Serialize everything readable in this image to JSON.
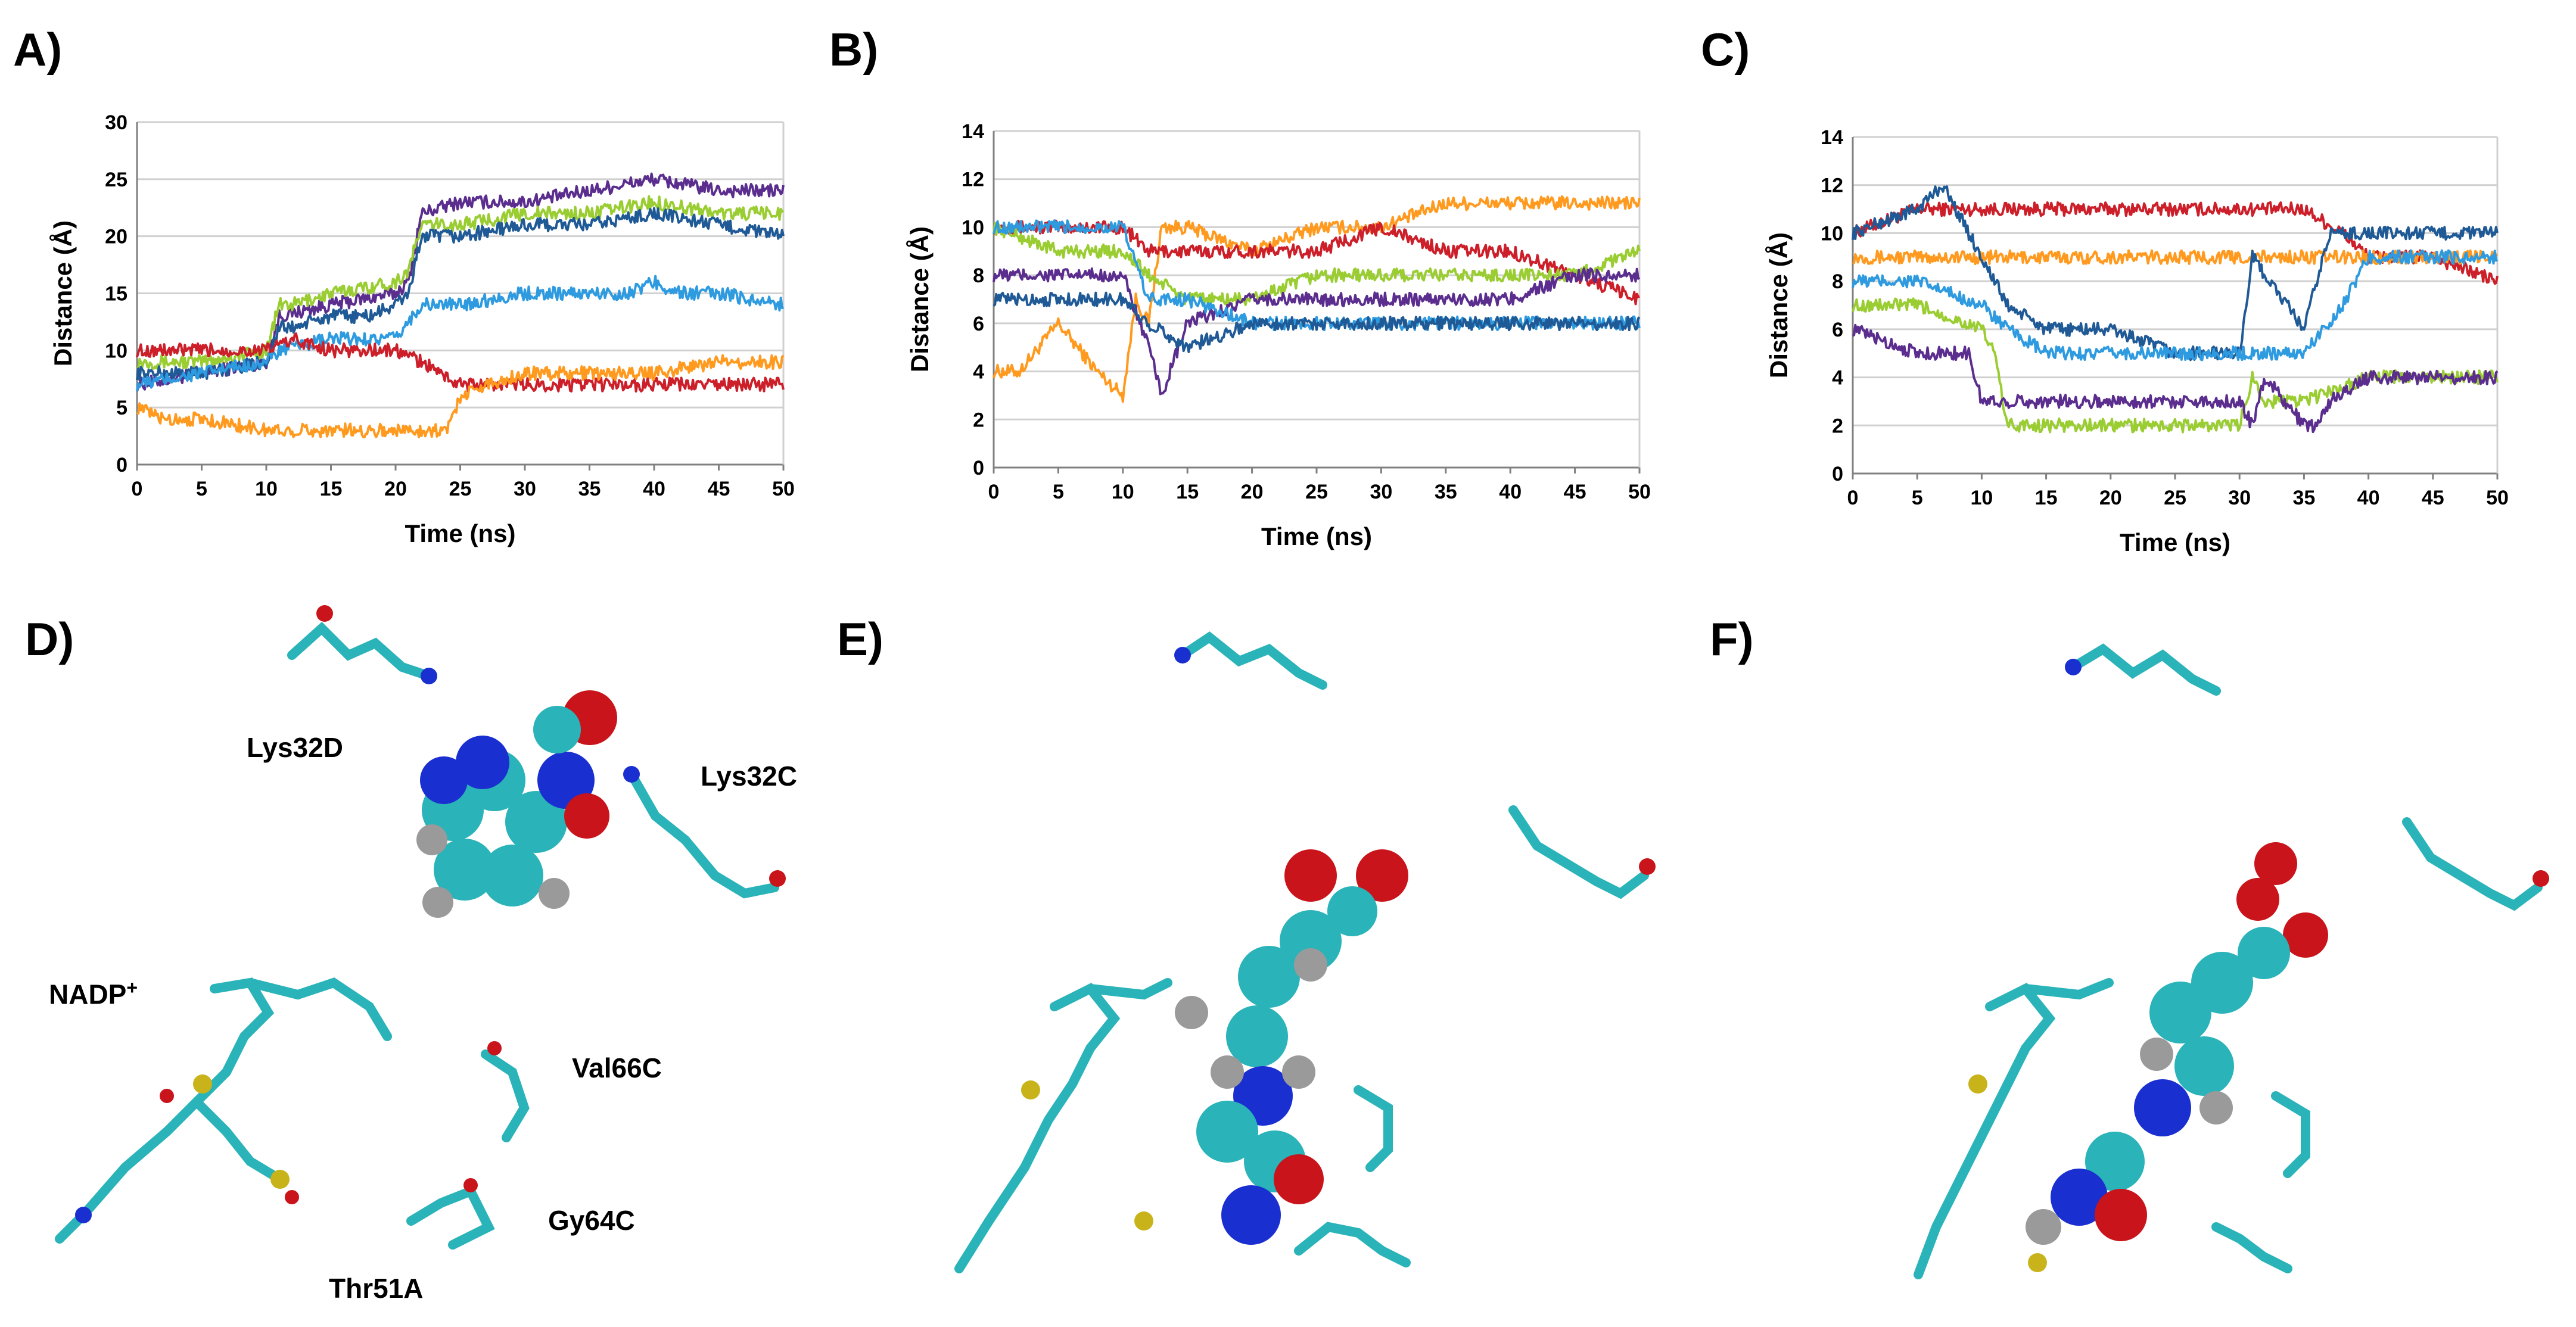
{
  "panels": [
    "A)",
    "B)",
    "C)",
    "D)",
    "E)",
    "F)"
  ],
  "colors": {
    "purple": "#5b2d8e",
    "lime": "#9acd32",
    "navy": "#1f5a96",
    "sky": "#2e9be0",
    "red": "#cc1f2a",
    "orange": "#ff9a1f",
    "carbon": "#2ab3b8",
    "nitrogen": "#1a2fd0",
    "oxygen": "#c8141a",
    "hydrogen": "#9a9a9a",
    "phosphorus": "#c8b41a"
  },
  "chart_data": [
    {
      "id": "A",
      "type": "line",
      "xlabel": "Time (ns)",
      "ylabel": "Distance (Å)",
      "xlim": [
        0,
        50
      ],
      "ylim": [
        0,
        30
      ],
      "xticks": [
        0,
        5,
        10,
        15,
        20,
        25,
        30,
        35,
        40,
        45,
        50
      ],
      "yticks": [
        0,
        5,
        10,
        15,
        20,
        25,
        30
      ],
      "grid": true,
      "series": [
        {
          "name": "purple",
          "color": "#5b2d8e",
          "x": [
            0,
            5,
            10,
            11,
            15,
            20,
            21,
            22,
            25,
            30,
            35,
            40,
            45,
            50
          ],
          "y": [
            7,
            8,
            9,
            13,
            14,
            15,
            16,
            22,
            23,
            23,
            24,
            25,
            24,
            24
          ]
        },
        {
          "name": "lime",
          "color": "#9acd32",
          "x": [
            0,
            5,
            10,
            11,
            12,
            15,
            20,
            21,
            22,
            25,
            30,
            35,
            40,
            45,
            50
          ],
          "y": [
            9,
            9,
            10,
            14,
            14,
            15,
            16,
            17,
            21,
            21,
            22,
            22,
            23,
            22,
            22
          ]
        },
        {
          "name": "navy",
          "color": "#1f5a96",
          "x": [
            0,
            5,
            10,
            11,
            12,
            15,
            18,
            20,
            21,
            22,
            25,
            30,
            35,
            40,
            45,
            50
          ],
          "y": [
            8,
            8,
            9,
            12,
            12,
            13,
            13,
            14,
            15,
            20,
            20,
            21,
            21,
            22,
            21,
            20
          ]
        },
        {
          "name": "sky",
          "color": "#2e9be0",
          "x": [
            0,
            5,
            10,
            11,
            15,
            20,
            22,
            25,
            30,
            35,
            38,
            40,
            42,
            45,
            50
          ],
          "y": [
            7,
            8,
            9,
            10,
            11,
            11,
            14,
            14,
            15,
            15,
            15,
            16,
            15,
            15,
            14
          ]
        },
        {
          "name": "red",
          "color": "#cc1f2a",
          "x": [
            0,
            5,
            10,
            12,
            15,
            18,
            20,
            22,
            25,
            30,
            35,
            40,
            45,
            50
          ],
          "y": [
            10,
            10,
            10,
            11,
            10,
            10,
            10,
            9,
            7,
            7,
            7,
            7,
            7,
            7
          ]
        },
        {
          "name": "orange",
          "color": "#ff9a1f",
          "x": [
            0,
            2,
            5,
            10,
            15,
            20,
            24,
            25,
            27,
            30,
            35,
            40,
            45,
            50
          ],
          "y": [
            5,
            4,
            4,
            3,
            3,
            3,
            3,
            6,
            7,
            8,
            8,
            8,
            9,
            9
          ]
        }
      ]
    },
    {
      "id": "B",
      "type": "line",
      "xlabel": "Time (ns)",
      "ylabel": "Distance (Å)",
      "xlim": [
        0,
        50
      ],
      "ylim": [
        0,
        14
      ],
      "xticks": [
        0,
        5,
        10,
        15,
        20,
        25,
        30,
        35,
        40,
        45,
        50
      ],
      "yticks": [
        0,
        2,
        4,
        6,
        8,
        10,
        12,
        14
      ],
      "grid": true,
      "series": [
        {
          "name": "orange",
          "color": "#ff9a1f",
          "x": [
            0,
            2,
            5,
            8,
            10,
            11,
            12,
            13,
            15,
            20,
            25,
            30,
            35,
            40,
            45,
            50
          ],
          "y": [
            4,
            4,
            6,
            4,
            3,
            7,
            6,
            10,
            10,
            9,
            10,
            10,
            11,
            11,
            11,
            11
          ]
        },
        {
          "name": "red",
          "color": "#cc1f2a",
          "x": [
            0,
            5,
            10,
            12,
            15,
            20,
            25,
            30,
            35,
            40,
            45,
            50
          ],
          "y": [
            10,
            10,
            10,
            9,
            9,
            9,
            9,
            10,
            9,
            9,
            8,
            7
          ]
        },
        {
          "name": "lime",
          "color": "#9acd32",
          "x": [
            0,
            5,
            10,
            12,
            15,
            20,
            25,
            30,
            35,
            40,
            45,
            50
          ],
          "y": [
            10,
            9,
            9,
            8,
            7,
            7,
            8,
            8,
            8,
            8,
            8,
            9
          ]
        },
        {
          "name": "purple",
          "color": "#5b2d8e",
          "x": [
            0,
            5,
            10,
            12,
            13,
            15,
            20,
            25,
            30,
            35,
            40,
            45,
            50
          ],
          "y": [
            8,
            8,
            8,
            5,
            3,
            6,
            7,
            7,
            7,
            7,
            7,
            8,
            8
          ]
        },
        {
          "name": "sky",
          "color": "#2e9be0",
          "x": [
            0,
            5,
            10,
            12,
            15,
            20,
            25,
            30,
            35,
            40,
            45,
            50
          ],
          "y": [
            10,
            10,
            10,
            7,
            7,
            6,
            6,
            6,
            6,
            6,
            6,
            6
          ]
        },
        {
          "name": "navy",
          "color": "#1f5a96",
          "x": [
            0,
            5,
            10,
            12,
            15,
            20,
            25,
            30,
            35,
            40,
            45,
            50
          ],
          "y": [
            7,
            7,
            7,
            6,
            5,
            6,
            6,
            6,
            6,
            6,
            6,
            6
          ]
        }
      ]
    },
    {
      "id": "C",
      "type": "line",
      "xlabel": "Time (ns)",
      "ylabel": "Distance (Å)",
      "xlim": [
        0,
        50
      ],
      "ylim": [
        0,
        14
      ],
      "xticks": [
        0,
        5,
        10,
        15,
        20,
        25,
        30,
        35,
        40,
        45,
        50
      ],
      "yticks": [
        0,
        2,
        4,
        6,
        8,
        10,
        12,
        14
      ],
      "grid": true,
      "series": [
        {
          "name": "red",
          "color": "#cc1f2a",
          "x": [
            0,
            5,
            10,
            15,
            20,
            25,
            30,
            35,
            38,
            40,
            45,
            50
          ],
          "y": [
            10,
            11,
            11,
            11,
            11,
            11,
            11,
            11,
            10,
            9,
            9,
            8
          ]
        },
        {
          "name": "orange",
          "color": "#ff9a1f",
          "x": [
            0,
            5,
            10,
            15,
            20,
            25,
            30,
            35,
            40,
            45,
            50
          ],
          "y": [
            9,
            9,
            9,
            9,
            9,
            9,
            9,
            9,
            9,
            9,
            9
          ]
        },
        {
          "name": "navy",
          "color": "#1f5a96",
          "x": [
            0,
            5,
            7,
            10,
            12,
            15,
            20,
            25,
            30,
            31,
            35,
            37,
            40,
            45,
            50
          ],
          "y": [
            10,
            11,
            12,
            9,
            7,
            6,
            6,
            5,
            5,
            9,
            6,
            10,
            10,
            10,
            10
          ]
        },
        {
          "name": "sky",
          "color": "#2e9be0",
          "x": [
            0,
            5,
            10,
            12,
            15,
            20,
            25,
            30,
            35,
            38,
            40,
            45,
            50
          ],
          "y": [
            8,
            8,
            7,
            6,
            5,
            5,
            5,
            5,
            5,
            7,
            9,
            9,
            9
          ]
        },
        {
          "name": "lime",
          "color": "#9acd32",
          "x": [
            0,
            5,
            10,
            11,
            12,
            15,
            20,
            25,
            30,
            31,
            32,
            35,
            40,
            45,
            50
          ],
          "y": [
            7,
            7,
            6,
            5,
            2,
            2,
            2,
            2,
            2,
            4,
            3,
            3,
            4,
            4,
            4
          ]
        },
        {
          "name": "purple",
          "color": "#5b2d8e",
          "x": [
            0,
            5,
            9,
            10,
            12,
            15,
            20,
            25,
            30,
            31,
            32,
            35,
            36,
            37,
            40,
            45,
            50
          ],
          "y": [
            6,
            5,
            5,
            3,
            3,
            3,
            3,
            3,
            3,
            2,
            4,
            2,
            2,
            3,
            4,
            4,
            4
          ]
        }
      ]
    }
  ],
  "molecule_labels": {
    "lys32d": "Lys32D",
    "lys32c": "Lys32C",
    "nadp": "NADP",
    "nadp_sup": "+",
    "val66c": "Val66C",
    "gy64c": "Gy64C",
    "thr51a": "Thr51A"
  }
}
